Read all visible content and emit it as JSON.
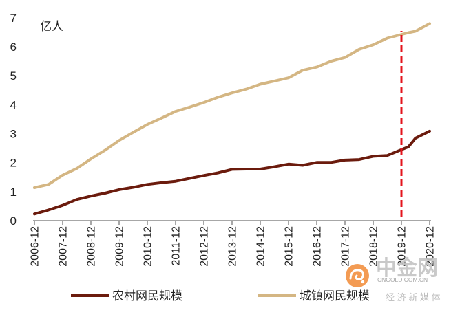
{
  "chart_data": {
    "type": "line",
    "unit_label": "亿人",
    "ylim": [
      0,
      7
    ],
    "yticks": [
      0,
      1,
      2,
      3,
      4,
      5,
      6,
      7
    ],
    "xlim": [
      "2006-12",
      "2020-12"
    ],
    "xticks": [
      "2006-12",
      "2007-12",
      "2008-12",
      "2009-12",
      "2010-12",
      "2011-12",
      "2012-12",
      "2013-12",
      "2014-12",
      "2015-12",
      "2016-12",
      "2017-12",
      "2018-12",
      "2019-12",
      "2020-12"
    ],
    "grid": false,
    "legend_position": "bottom",
    "x": [
      "2006-12",
      "2007-06",
      "2007-12",
      "2008-06",
      "2008-12",
      "2009-06",
      "2009-12",
      "2010-06",
      "2010-12",
      "2011-06",
      "2011-12",
      "2012-06",
      "2012-12",
      "2013-06",
      "2013-12",
      "2014-06",
      "2014-12",
      "2015-06",
      "2015-12",
      "2016-06",
      "2016-12",
      "2017-06",
      "2017-12",
      "2018-06",
      "2018-12",
      "2019-06",
      "2020-03",
      "2020-06",
      "2020-12"
    ],
    "series": [
      {
        "name": "农村网民规模",
        "color": "#6b1b0d",
        "values": [
          0.23,
          0.37,
          0.53,
          0.73,
          0.85,
          0.95,
          1.07,
          1.15,
          1.25,
          1.31,
          1.36,
          1.46,
          1.56,
          1.65,
          1.77,
          1.78,
          1.78,
          1.86,
          1.95,
          1.91,
          2.01,
          2.01,
          2.09,
          2.11,
          2.22,
          2.25,
          2.55,
          2.85,
          3.09
        ]
      },
      {
        "name": "城镇网民规模",
        "color": "#d4b683",
        "values": [
          1.14,
          1.25,
          1.57,
          1.8,
          2.13,
          2.43,
          2.77,
          3.05,
          3.32,
          3.54,
          3.77,
          3.92,
          4.08,
          4.26,
          4.41,
          4.54,
          4.71,
          4.82,
          4.93,
          5.19,
          5.3,
          5.5,
          5.63,
          5.91,
          6.07,
          6.3,
          6.49,
          6.54,
          6.8
        ]
      }
    ],
    "reference_line": {
      "x": "2019-12",
      "y_from": 0,
      "y_to": 6.55,
      "color": "#e3141c",
      "style": "dashed"
    }
  },
  "watermark": {
    "brand": "中金网",
    "domain": "CNGOLD.COM.CN",
    "tagline": "经 济 新 媒 体",
    "logo_color": "#f07c1e"
  }
}
